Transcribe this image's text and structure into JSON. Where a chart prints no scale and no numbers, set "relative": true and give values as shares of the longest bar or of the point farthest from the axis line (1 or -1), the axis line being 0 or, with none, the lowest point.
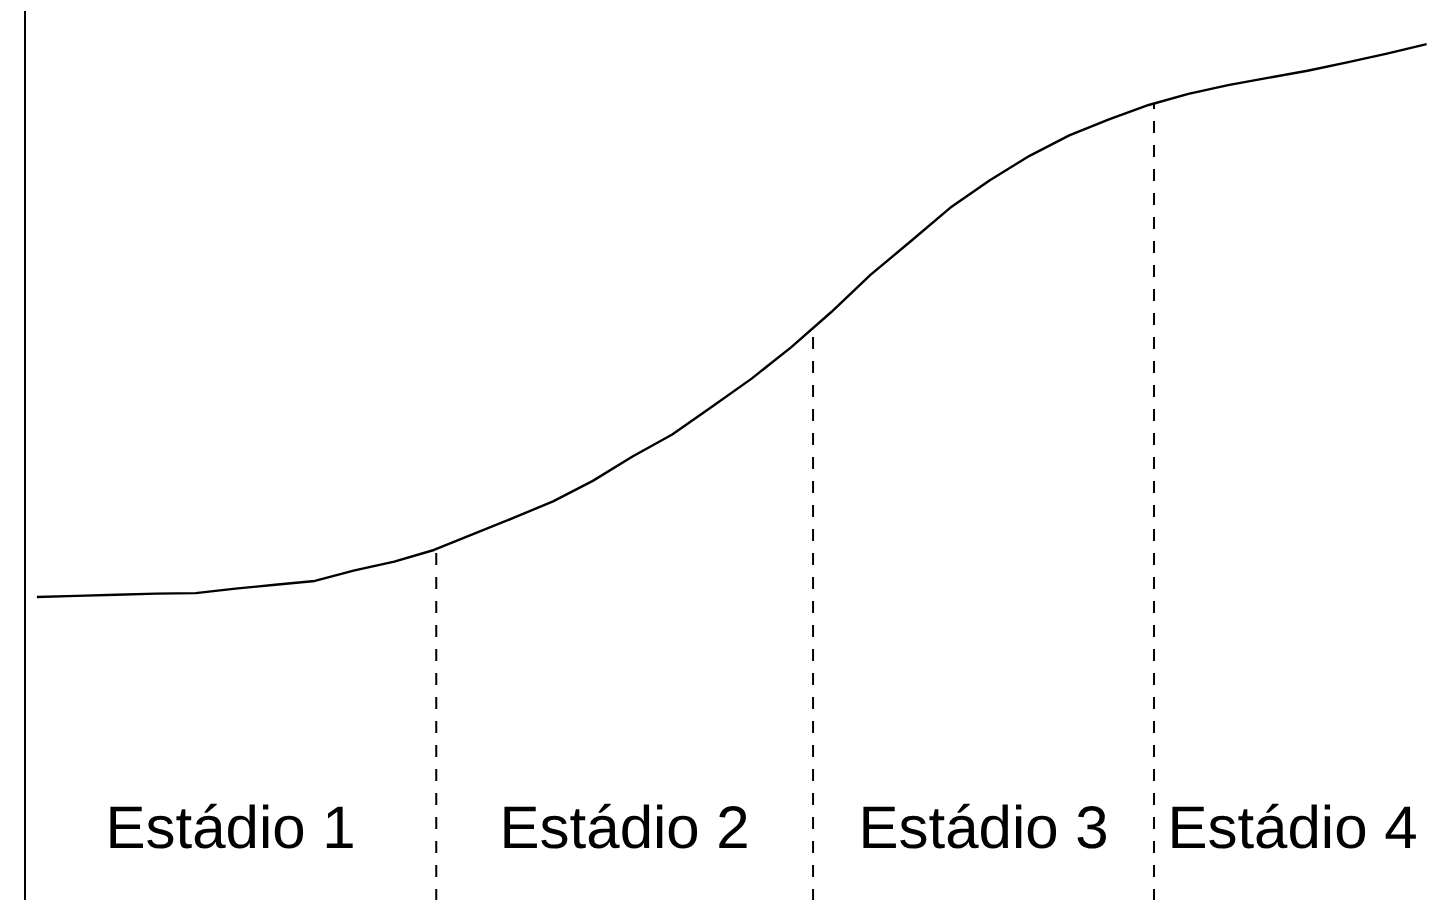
{
  "chart_data": {
    "type": "line",
    "relative": true,
    "categories": [
      null,
      null,
      null,
      null,
      null,
      null,
      null,
      null,
      null,
      null,
      null,
      null,
      null,
      null,
      null,
      null,
      null,
      null,
      null,
      null,
      null,
      null,
      null,
      null,
      null,
      null,
      null,
      null,
      null,
      null,
      null,
      null,
      null,
      null,
      null,
      null
    ],
    "series": [
      {
        "color": "#000000",
        "values": [
          0,
          0.002,
          0.004,
          0.006,
          0.007,
          0.015,
          0.022,
          0.029,
          0.048,
          0.064,
          0.085,
          0.114,
          0.143,
          0.173,
          0.21,
          0.254,
          0.294,
          0.344,
          0.395,
          0.452,
          0.515,
          0.583,
          0.643,
          0.704,
          0.754,
          0.798,
          0.835,
          0.864,
          0.89,
          0.91,
          0.926,
          0.939,
          0.952,
          0.967,
          0.983,
          1.0
        ]
      }
    ],
    "annotations": [
      "Estádio 1",
      "Estádio 2",
      "Estádio 3",
      "Estádio 4"
    ],
    "grid": false,
    "marker": "none",
    "line_style": "solid"
  }
}
